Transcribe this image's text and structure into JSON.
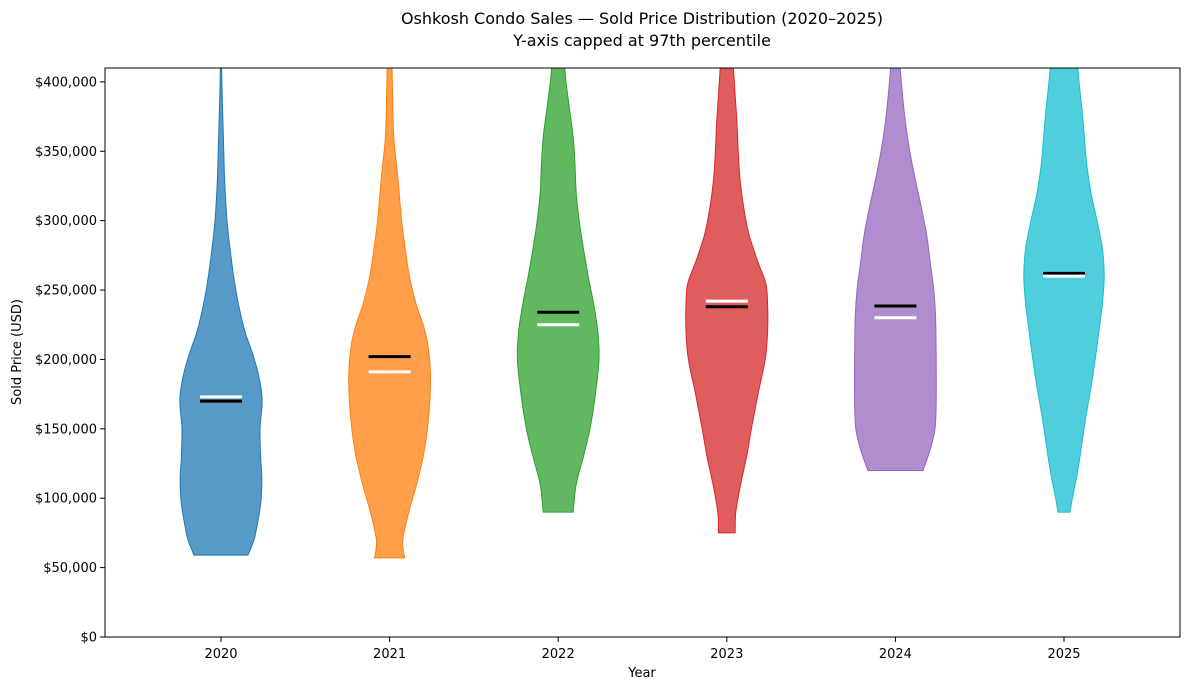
{
  "chart_data": {
    "type": "violin",
    "title": "Oshkosh Condo Sales — Sold Price Distribution (2020–2025)",
    "subtitle": "Y-axis capped at 97th percentile",
    "xlabel": "Year",
    "ylabel": "Sold Price (USD)",
    "ylim": [
      0,
      410000
    ],
    "yticks": [
      {
        "value": 0,
        "label": "$0"
      },
      {
        "value": 50000,
        "label": "$50,000"
      },
      {
        "value": 100000,
        "label": "$100,000"
      },
      {
        "value": 150000,
        "label": "$150,000"
      },
      {
        "value": 200000,
        "label": "$200,000"
      },
      {
        "value": 250000,
        "label": "$250,000"
      },
      {
        "value": 300000,
        "label": "$300,000"
      },
      {
        "value": 350000,
        "label": "$350,000"
      },
      {
        "value": 400000,
        "label": "$400,000"
      }
    ],
    "categories": [
      "2020",
      "2021",
      "2022",
      "2023",
      "2024",
      "2025"
    ],
    "series": [
      {
        "name": "2020",
        "color": "#1f77b4",
        "mean": 170000,
        "median": 173000,
        "min": 59000,
        "max": 410000,
        "profile": [
          [
            59000,
            0.45
          ],
          [
            70000,
            0.55
          ],
          [
            80000,
            0.6
          ],
          [
            90000,
            0.64
          ],
          [
            100000,
            0.67
          ],
          [
            115000,
            0.68
          ],
          [
            130000,
            0.66
          ],
          [
            150000,
            0.65
          ],
          [
            165000,
            0.68
          ],
          [
            175000,
            0.68
          ],
          [
            190000,
            0.62
          ],
          [
            205000,
            0.52
          ],
          [
            220000,
            0.4
          ],
          [
            240000,
            0.29
          ],
          [
            260000,
            0.21
          ],
          [
            280000,
            0.15
          ],
          [
            300000,
            0.1
          ],
          [
            330000,
            0.06
          ],
          [
            360000,
            0.04
          ],
          [
            390000,
            0.02
          ],
          [
            410000,
            0.01
          ]
        ]
      },
      {
        "name": "2021",
        "color": "#ff7f0e",
        "mean": 202000,
        "median": 191000,
        "min": 57000,
        "max": 410000,
        "profile": [
          [
            57000,
            0.25
          ],
          [
            70000,
            0.22
          ],
          [
            90000,
            0.32
          ],
          [
            110000,
            0.45
          ],
          [
            130000,
            0.56
          ],
          [
            150000,
            0.63
          ],
          [
            170000,
            0.67
          ],
          [
            190000,
            0.68
          ],
          [
            210000,
            0.64
          ],
          [
            225000,
            0.56
          ],
          [
            240000,
            0.44
          ],
          [
            260000,
            0.33
          ],
          [
            280000,
            0.26
          ],
          [
            300000,
            0.2
          ],
          [
            330000,
            0.14
          ],
          [
            360000,
            0.07
          ],
          [
            390000,
            0.05
          ],
          [
            410000,
            0.04
          ]
        ]
      },
      {
        "name": "2022",
        "color": "#2ca02c",
        "mean": 234000,
        "median": 225000,
        "min": 90000,
        "max": 410000,
        "profile": [
          [
            90000,
            0.25
          ],
          [
            110000,
            0.3
          ],
          [
            130000,
            0.42
          ],
          [
            150000,
            0.53
          ],
          [
            175000,
            0.62
          ],
          [
            200000,
            0.68
          ],
          [
            220000,
            0.66
          ],
          [
            240000,
            0.59
          ],
          [
            260000,
            0.5
          ],
          [
            280000,
            0.42
          ],
          [
            300000,
            0.35
          ],
          [
            320000,
            0.3
          ],
          [
            340000,
            0.28
          ],
          [
            360000,
            0.25
          ],
          [
            380000,
            0.19
          ],
          [
            400000,
            0.13
          ],
          [
            410000,
            0.11
          ]
        ]
      },
      {
        "name": "2023",
        "color": "#d62728",
        "mean": 238000,
        "median": 242000,
        "min": 75000,
        "max": 410000,
        "profile": [
          [
            75000,
            0.14
          ],
          [
            90000,
            0.15
          ],
          [
            110000,
            0.23
          ],
          [
            130000,
            0.33
          ],
          [
            150000,
            0.41
          ],
          [
            175000,
            0.52
          ],
          [
            200000,
            0.64
          ],
          [
            220000,
            0.68
          ],
          [
            240000,
            0.68
          ],
          [
            255000,
            0.65
          ],
          [
            270000,
            0.52
          ],
          [
            290000,
            0.37
          ],
          [
            310000,
            0.28
          ],
          [
            330000,
            0.22
          ],
          [
            350000,
            0.19
          ],
          [
            370000,
            0.17
          ],
          [
            390000,
            0.14
          ],
          [
            410000,
            0.11
          ]
        ]
      },
      {
        "name": "2024",
        "color": "#9467bd",
        "mean": 238500,
        "median": 230000,
        "min": 120000,
        "max": 410000,
        "profile": [
          [
            120000,
            0.46
          ],
          [
            135000,
            0.58
          ],
          [
            150000,
            0.66
          ],
          [
            170000,
            0.68
          ],
          [
            200000,
            0.68
          ],
          [
            230000,
            0.67
          ],
          [
            250000,
            0.64
          ],
          [
            270000,
            0.58
          ],
          [
            290000,
            0.52
          ],
          [
            310000,
            0.43
          ],
          [
            330000,
            0.33
          ],
          [
            350000,
            0.24
          ],
          [
            370000,
            0.17
          ],
          [
            390000,
            0.12
          ],
          [
            410000,
            0.08
          ]
        ]
      },
      {
        "name": "2025",
        "color": "#17becf",
        "mean": 262000,
        "median": 260000,
        "min": 90000,
        "max": 410000,
        "profile": [
          [
            90000,
            0.1
          ],
          [
            100000,
            0.14
          ],
          [
            120000,
            0.23
          ],
          [
            140000,
            0.3
          ],
          [
            160000,
            0.37
          ],
          [
            180000,
            0.45
          ],
          [
            200000,
            0.52
          ],
          [
            220000,
            0.58
          ],
          [
            240000,
            0.64
          ],
          [
            260000,
            0.67
          ],
          [
            280000,
            0.64
          ],
          [
            300000,
            0.55
          ],
          [
            320000,
            0.45
          ],
          [
            340000,
            0.38
          ],
          [
            360000,
            0.34
          ],
          [
            380000,
            0.3
          ],
          [
            400000,
            0.25
          ],
          [
            410000,
            0.23
          ]
        ]
      }
    ]
  }
}
